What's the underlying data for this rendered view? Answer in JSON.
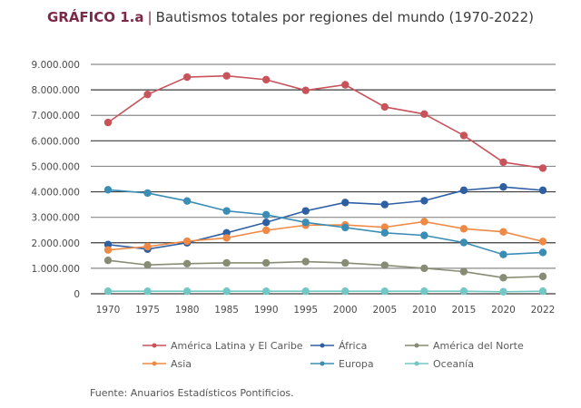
{
  "title": {
    "lead": "GRÁFICO 1.a",
    "separator": "|",
    "text": "Bautismos totales por regiones del mundo (1970-2022)"
  },
  "source": "Fuente: Anuarios Estadísticos Pontificios.",
  "chart_data": {
    "type": "line",
    "title": "Bautismos totales por regiones del mundo (1970-2022)",
    "xlabel": "",
    "ylabel": "",
    "x": [
      "1970",
      "1975",
      "1980",
      "1985",
      "1990",
      "1995",
      "2000",
      "2005",
      "2010",
      "2015",
      "2020",
      "2022"
    ],
    "ylim": [
      0,
      9000000
    ],
    "yticks": [
      0,
      1000000,
      2000000,
      3000000,
      4000000,
      5000000,
      6000000,
      7000000,
      8000000,
      9000000
    ],
    "ytick_labels": [
      "0",
      "1.000.000",
      "2.000.000",
      "3.000.000",
      "4.000.000",
      "5.000.000",
      "6.000.000",
      "7.000.000",
      "8.000.000",
      "9.000.000"
    ],
    "grid": "horizontal",
    "legend_position": "bottom",
    "series": [
      {
        "name": "América Latina y El Caribe",
        "color": "#c8535b",
        "values": [
          6720000,
          7820000,
          8500000,
          8550000,
          8400000,
          7980000,
          8200000,
          7330000,
          7050000,
          6210000,
          5160000,
          4930000
        ]
      },
      {
        "name": "África",
        "color": "#2e5fa3",
        "values": [
          1930000,
          1750000,
          2000000,
          2390000,
          2800000,
          3250000,
          3580000,
          3500000,
          3650000,
          4060000,
          4190000,
          4060000
        ]
      },
      {
        "name": "América del Norte",
        "color": "#878c74",
        "values": [
          1310000,
          1130000,
          1180000,
          1210000,
          1210000,
          1260000,
          1210000,
          1120000,
          1000000,
          870000,
          630000,
          680000
        ]
      },
      {
        "name": "Asia",
        "color": "#ee8a45",
        "values": [
          1720000,
          1850000,
          2060000,
          2190000,
          2490000,
          2690000,
          2700000,
          2610000,
          2830000,
          2550000,
          2430000,
          2050000
        ]
      },
      {
        "name": "Europa",
        "color": "#3a8db5",
        "values": [
          4080000,
          3950000,
          3640000,
          3250000,
          3100000,
          2800000,
          2600000,
          2390000,
          2290000,
          2010000,
          1540000,
          1620000
        ]
      },
      {
        "name": "Oceanía",
        "color": "#72c8c4",
        "values": [
          100000,
          100000,
          100000,
          100000,
          100000,
          100000,
          100000,
          100000,
          100000,
          100000,
          80000,
          100000
        ]
      }
    ]
  }
}
